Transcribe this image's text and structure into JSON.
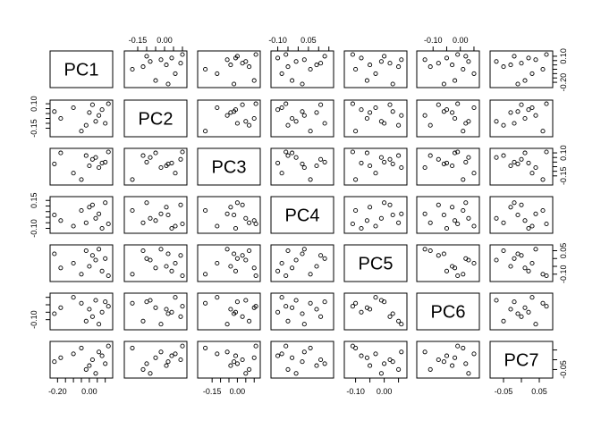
{
  "chart_data": {
    "type": "scatter",
    "variables": [
      "PC1",
      "PC2",
      "PC3",
      "PC4",
      "PC5",
      "PC6",
      "PC7"
    ],
    "ranges": [
      [
        -0.23,
        0.13
      ],
      [
        -0.21,
        0.11
      ],
      [
        -0.22,
        0.12
      ],
      [
        -0.12,
        0.16
      ],
      [
        -0.13,
        0.07
      ],
      [
        -0.15,
        0.06
      ],
      [
        -0.08,
        0.08
      ]
    ],
    "axis_ticks": [
      {
        "var": 0,
        "side": "bottom",
        "ticks": [
          {
            "value": -0.2,
            "label": "-0.20"
          },
          {
            "value": -0.15
          },
          {
            "value": -0.1
          },
          {
            "value": -0.05
          },
          {
            "value": 0.0,
            "label": "0.00"
          },
          {
            "value": 0.05
          },
          {
            "value": 0.1
          }
        ]
      },
      {
        "var": 0,
        "side": "right",
        "ticks": [
          {
            "value": -0.2,
            "label": "-0.20"
          },
          {
            "value": -0.15
          },
          {
            "value": -0.1
          },
          {
            "value": -0.05
          },
          {
            "value": 0.0
          },
          {
            "value": 0.05
          },
          {
            "value": 0.1,
            "label": "0.10"
          }
        ]
      },
      {
        "var": 1,
        "side": "top",
        "ticks": [
          {
            "value": -0.15,
            "label": "-0.15"
          },
          {
            "value": -0.1
          },
          {
            "value": -0.05
          },
          {
            "value": 0.0,
            "label": "0.00"
          },
          {
            "value": 0.05
          },
          {
            "value": 0.1
          }
        ]
      },
      {
        "var": 1,
        "side": "left",
        "ticks": [
          {
            "value": -0.15,
            "label": "-0.15"
          },
          {
            "value": -0.1
          },
          {
            "value": -0.05
          },
          {
            "value": 0.0
          },
          {
            "value": 0.05
          },
          {
            "value": 0.1,
            "label": "0.10"
          }
        ]
      },
      {
        "var": 2,
        "side": "bottom",
        "ticks": [
          {
            "value": -0.15,
            "label": "-0.15"
          },
          {
            "value": -0.1
          },
          {
            "value": -0.05
          },
          {
            "value": 0.0,
            "label": "0.00"
          },
          {
            "value": 0.05
          },
          {
            "value": 0.1
          }
        ]
      },
      {
        "var": 2,
        "side": "right",
        "ticks": [
          {
            "value": -0.15,
            "label": "-0.15"
          },
          {
            "value": -0.1
          },
          {
            "value": -0.05
          },
          {
            "value": 0.0
          },
          {
            "value": 0.05
          },
          {
            "value": 0.1,
            "label": "0.10"
          }
        ]
      },
      {
        "var": 3,
        "side": "top",
        "ticks": [
          {
            "value": -0.1,
            "label": "-0.10"
          },
          {
            "value": -0.05
          },
          {
            "value": 0.0
          },
          {
            "value": 0.05,
            "label": "0.05"
          },
          {
            "value": 0.1
          },
          {
            "value": 0.15
          }
        ]
      },
      {
        "var": 3,
        "side": "left",
        "ticks": [
          {
            "value": -0.1,
            "label": "-0.10"
          },
          {
            "value": -0.05
          },
          {
            "value": 0.0
          },
          {
            "value": 0.05
          },
          {
            "value": 0.1
          },
          {
            "value": 0.15,
            "label": "0.15"
          }
        ]
      },
      {
        "var": 4,
        "side": "bottom",
        "ticks": [
          {
            "value": -0.1,
            "label": "-0.10"
          },
          {
            "value": -0.05
          },
          {
            "value": 0.0,
            "label": "0.00"
          },
          {
            "value": 0.05
          }
        ]
      },
      {
        "var": 4,
        "side": "right",
        "ticks": [
          {
            "value": -0.1,
            "label": "-0.10"
          },
          {
            "value": -0.05
          },
          {
            "value": 0.0
          },
          {
            "value": 0.05,
            "label": "0.05"
          }
        ]
      },
      {
        "var": 5,
        "side": "top",
        "ticks": [
          {
            "value": -0.1,
            "label": "-0.10"
          },
          {
            "value": -0.05
          },
          {
            "value": 0.0,
            "label": "0.00"
          },
          {
            "value": 0.05
          }
        ]
      },
      {
        "var": 5,
        "side": "left",
        "ticks": [
          {
            "value": -0.1,
            "label": "-0.10"
          },
          {
            "value": -0.05
          },
          {
            "value": 0.0
          },
          {
            "value": 0.05
          }
        ]
      },
      {
        "var": 6,
        "side": "bottom",
        "ticks": [
          {
            "value": -0.05,
            "label": "-0.05"
          },
          {
            "value": 0.0
          },
          {
            "value": 0.05,
            "label": "0.05"
          }
        ]
      },
      {
        "var": 6,
        "side": "right",
        "ticks": [
          {
            "value": -0.05,
            "label": "-0.05"
          },
          {
            "value": 0.0
          },
          {
            "value": 0.05
          }
        ]
      }
    ],
    "observations": [
      [
        -0.22,
        0.02,
        -0.02,
        0.02,
        0.03,
        -0.06,
        -0.01
      ],
      [
        -0.18,
        -0.05,
        0.1,
        -0.03,
        -0.06,
        -0.02,
        0.01
      ],
      [
        -0.1,
        0.06,
        -0.12,
        -0.08,
        -0.03,
        0.05,
        0.03
      ],
      [
        -0.05,
        -0.18,
        -0.19,
        0.06,
        -0.1,
        0.01,
        0.06
      ],
      [
        -0.02,
        -0.12,
        0.07,
        -0.05,
        0.05,
        -0.11,
        -0.05
      ],
      [
        0.0,
        0.01,
        -0.04,
        0.09,
        -0.05,
        -0.03,
        -0.03
      ],
      [
        0.02,
        0.09,
        0.03,
        0.11,
        0.02,
        -0.08,
        0.0
      ],
      [
        0.04,
        -0.08,
        0.05,
        -0.01,
        -0.01,
        0.03,
        -0.07
      ],
      [
        0.06,
        -0.02,
        -0.06,
        0.03,
        0.06,
        -0.13,
        0.04
      ],
      [
        0.08,
        0.04,
        -0.01,
        -0.1,
        -0.08,
        -0.05,
        0.02
      ],
      [
        0.1,
        -0.1,
        0.0,
        0.13,
        0.0,
        0.02,
        -0.02
      ],
      [
        0.12,
        0.1,
        0.11,
        -0.06,
        -0.11,
        -0.01,
        0.07
      ]
    ]
  }
}
